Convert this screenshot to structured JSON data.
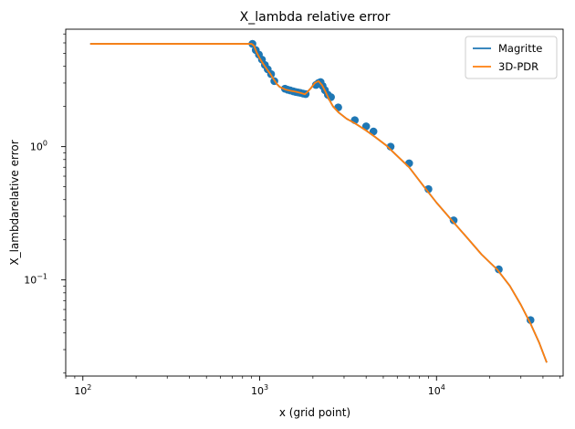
{
  "chart_data": {
    "type": "line",
    "title": "X_lambda relative error",
    "xlabel": "x (grid point)",
    "ylabel": "X_lambdarelative error",
    "xscale": "log",
    "yscale": "log",
    "xlim": [
      80,
      52000
    ],
    "ylim": [
      0.019,
      7.6
    ],
    "x_ticks": [
      {
        "value": 100,
        "base": "10",
        "exp": "2"
      },
      {
        "value": 1000,
        "base": "10",
        "exp": "3"
      },
      {
        "value": 10000,
        "base": "10",
        "exp": "4"
      }
    ],
    "y_ticks": [
      {
        "value": 1,
        "base": "10",
        "exp": "0"
      },
      {
        "value": 0.1,
        "base": "10",
        "exp": "−1"
      }
    ],
    "legend": {
      "position": "top-right"
    },
    "series": [
      {
        "name": "Magritte",
        "color": "#1f77b4",
        "x": [
          110,
          500,
          900,
          930,
          960,
          1000,
          1050,
          1100,
          1150,
          1200,
          1250,
          1300,
          1400,
          1500,
          1600,
          1700,
          1800,
          1850,
          1950,
          2050,
          2150,
          2250,
          2350,
          2450,
          2600,
          2800,
          3100,
          3500,
          4000,
          4500,
          5200,
          6000,
          7000,
          8500,
          10000,
          12500,
          15000,
          18000,
          22000,
          26000,
          30000,
          34000,
          38000,
          42000
        ],
        "y": [
          5.9,
          5.9,
          5.9,
          5.7,
          5.1,
          4.6,
          4.15,
          3.8,
          3.5,
          3.2,
          2.95,
          2.8,
          2.68,
          2.62,
          2.58,
          2.53,
          2.47,
          2.55,
          2.75,
          3.0,
          3.1,
          2.9,
          2.6,
          2.3,
          2.0,
          1.8,
          1.62,
          1.48,
          1.32,
          1.18,
          1.02,
          0.85,
          0.7,
          0.5,
          0.38,
          0.27,
          0.205,
          0.155,
          0.12,
          0.09,
          0.065,
          0.047,
          0.034,
          0.024
        ]
      },
      {
        "name": "3D-PDR",
        "color": "#ff7f0e",
        "x": [
          110,
          500,
          900,
          930,
          960,
          1000,
          1050,
          1100,
          1150,
          1200,
          1250,
          1300,
          1400,
          1500,
          1600,
          1700,
          1800,
          1850,
          1950,
          2050,
          2150,
          2250,
          2350,
          2450,
          2600,
          2800,
          3100,
          3500,
          4000,
          4500,
          5200,
          6000,
          7000,
          8500,
          10000,
          12500,
          15000,
          18000,
          22000,
          26000,
          30000,
          34000,
          38000,
          42000
        ],
        "y": [
          5.9,
          5.9,
          5.9,
          5.7,
          5.1,
          4.6,
          4.15,
          3.8,
          3.5,
          3.2,
          2.95,
          2.8,
          2.68,
          2.62,
          2.58,
          2.53,
          2.47,
          2.55,
          2.75,
          3.0,
          3.1,
          2.9,
          2.6,
          2.3,
          2.0,
          1.8,
          1.62,
          1.48,
          1.32,
          1.18,
          1.02,
          0.85,
          0.7,
          0.5,
          0.38,
          0.27,
          0.205,
          0.155,
          0.12,
          0.09,
          0.065,
          0.047,
          0.034,
          0.024
        ]
      }
    ],
    "points": {
      "color": "#1f77b4",
      "x": [
        910,
        950,
        990,
        1030,
        1070,
        1110,
        1160,
        1210,
        1390,
        1440,
        1490,
        1550,
        1600,
        1650,
        1700,
        1760,
        1820,
        2080,
        2150,
        2210,
        2270,
        2340,
        2430,
        2530,
        2780,
        3450,
        4000,
        4400,
        5500,
        7000,
        9000,
        12500,
        22500,
        34000
      ],
      "y": [
        5.9,
        5.3,
        4.9,
        4.5,
        4.1,
        3.8,
        3.5,
        3.1,
        2.72,
        2.67,
        2.64,
        2.6,
        2.57,
        2.55,
        2.53,
        2.5,
        2.48,
        2.9,
        3.0,
        3.05,
        2.85,
        2.65,
        2.45,
        2.35,
        1.97,
        1.58,
        1.42,
        1.3,
        1.0,
        0.75,
        0.48,
        0.28,
        0.12,
        0.05
      ]
    }
  }
}
